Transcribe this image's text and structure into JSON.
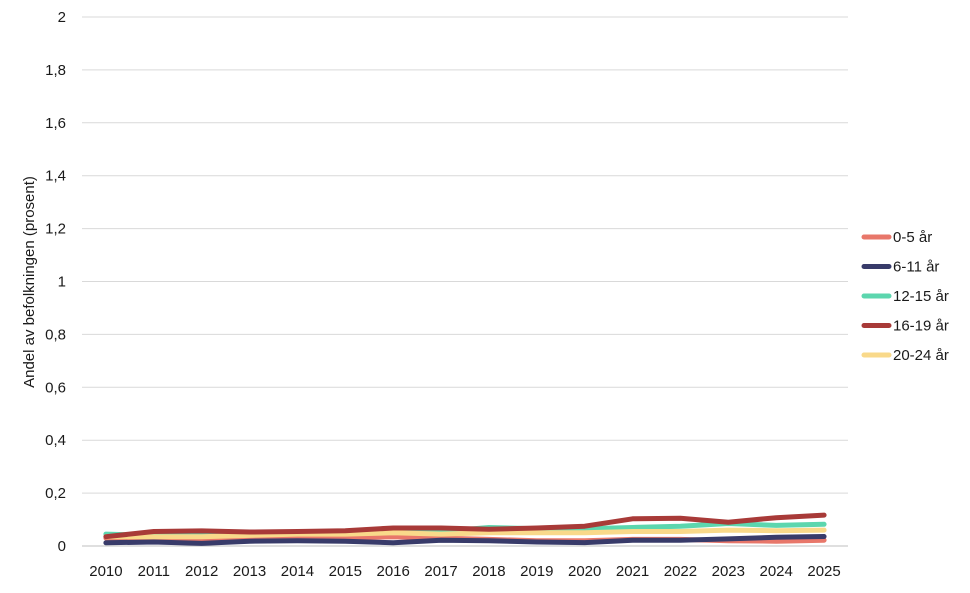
{
  "chart_data": {
    "type": "line",
    "ylabel": "Andel av befolkningen (prosent)",
    "xlabel": "",
    "ylim": [
      0,
      2
    ],
    "y_ticks": [
      0,
      0.2,
      0.4,
      0.6,
      0.8,
      1,
      1.2,
      1.4,
      1.6,
      1.8,
      2
    ],
    "y_tick_labels": [
      "0",
      "0,2",
      "0,4",
      "0,6",
      "0,8",
      "1",
      "1,2",
      "1,4",
      "1,6",
      "1,8",
      "2"
    ],
    "categories": [
      "2010",
      "2011",
      "2012",
      "2013",
      "2014",
      "2015",
      "2016",
      "2017",
      "2018",
      "2019",
      "2020",
      "2021",
      "2022",
      "2023",
      "2024",
      "2025"
    ],
    "grid": "horizontal",
    "legend_position": "right",
    "series": [
      {
        "name": "0-5 år",
        "color": "#E8776A",
        "values": [
          0.03,
          0.03,
          0.025,
          0.028,
          0.03,
          0.03,
          0.035,
          0.03,
          0.025,
          0.02,
          0.02,
          0.025,
          0.025,
          0.02,
          0.018,
          0.022
        ]
      },
      {
        "name": "12-15 år",
        "color": "#5CD6AE",
        "values": [
          0.045,
          0.04,
          0.04,
          0.045,
          0.05,
          0.055,
          0.06,
          0.055,
          0.07,
          0.065,
          0.065,
          0.07,
          0.075,
          0.085,
          0.078,
          0.082
        ]
      },
      {
        "name": "20-24 år",
        "color": "#F9D98A",
        "values": [
          0.035,
          0.035,
          0.035,
          0.04,
          0.045,
          0.045,
          0.05,
          0.045,
          0.05,
          0.05,
          0.05,
          0.055,
          0.055,
          0.06,
          0.058,
          0.06
        ]
      },
      {
        "name": "16-19 år",
        "color": "#A83A38",
        "values": [
          0.035,
          0.055,
          0.057,
          0.053,
          0.055,
          0.058,
          0.068,
          0.068,
          0.063,
          0.068,
          0.075,
          0.103,
          0.105,
          0.09,
          0.107,
          0.117
        ]
      },
      {
        "name": "6-11 år",
        "color": "#383B6A",
        "values": [
          0.012,
          0.015,
          0.01,
          0.018,
          0.02,
          0.018,
          0.012,
          0.022,
          0.02,
          0.015,
          0.013,
          0.022,
          0.022,
          0.027,
          0.033,
          0.036
        ]
      }
    ],
    "legend_order": [
      "0-5 år",
      "6-11 år",
      "12-15 år",
      "16-19 år",
      "20-24 år"
    ]
  }
}
